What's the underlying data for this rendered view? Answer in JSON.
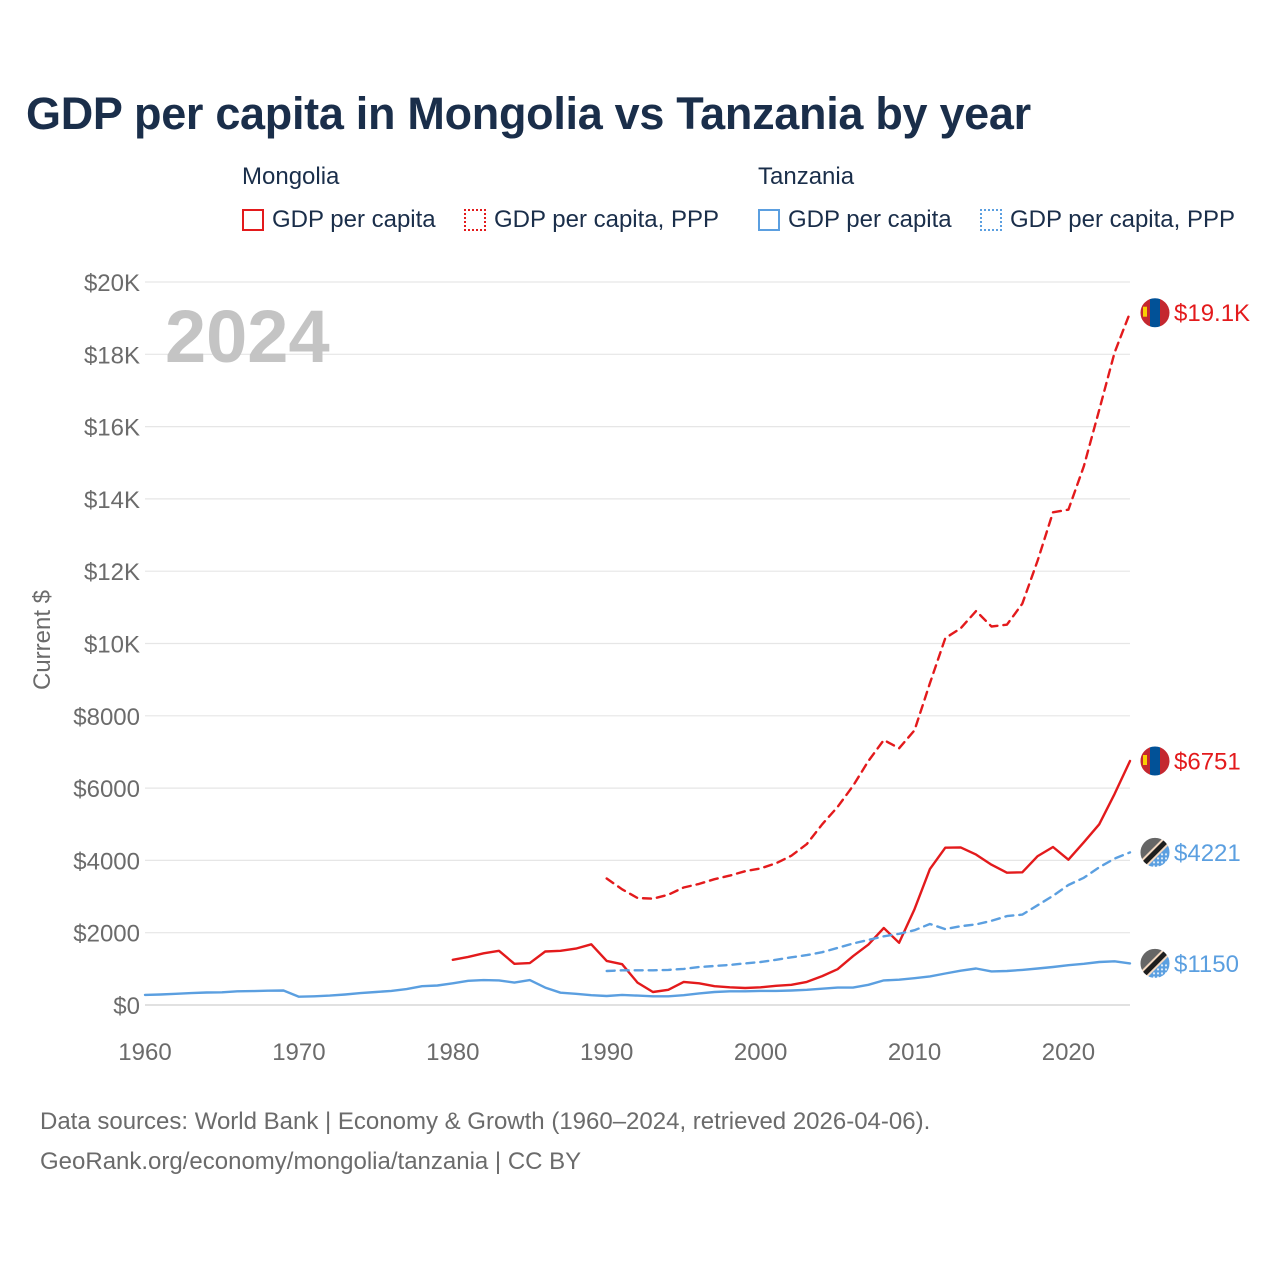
{
  "title": "GDP per capita in Mongolia vs Tanzania by year",
  "legend": {
    "groups": [
      {
        "name": "Mongolia",
        "items": [
          "GDP per capita",
          "GDP per capita, PPP"
        ]
      },
      {
        "name": "Tanzania",
        "items": [
          "GDP per capita",
          "GDP per capita, PPP"
        ]
      }
    ]
  },
  "colors": {
    "mongolia": "#e31a1c",
    "tanzania": "#5b9fe0",
    "grid": "#e6e6e6",
    "axis_text": "#6b6b6b",
    "year_watermark": "#c4c4c4"
  },
  "source": {
    "line1": "Data sources: World Bank | Economy & Growth (1960–2024, retrieved 2026-04-06).",
    "line2": "GeoRank.org/economy/mongolia/tanzania | CC BY"
  },
  "chart_data": {
    "type": "line",
    "year_label": "2024",
    "ylabel": "Current $",
    "xlim": [
      1960,
      2024
    ],
    "ylim": [
      0,
      20000
    ],
    "x_ticks": [
      1960,
      1970,
      1980,
      1990,
      2000,
      2010,
      2020
    ],
    "x_tick_labels": [
      "1960",
      "1970",
      "1980",
      "1990",
      "2000",
      "2010",
      "2020"
    ],
    "y_ticks": [
      0,
      2000,
      4000,
      6000,
      8000,
      10000,
      12000,
      14000,
      16000,
      18000,
      20000
    ],
    "y_tick_labels": [
      "$0",
      "$2000",
      "$4000",
      "$6000",
      "$8000",
      "$10K",
      "$12K",
      "$14K",
      "$16K",
      "$18K",
      "$20K"
    ],
    "series": [
      {
        "name": "Mongolia GDP per capita",
        "country": "Mongolia",
        "style": "solid",
        "color": "#e31a1c",
        "end_label": "$6751",
        "x": [
          1980,
          1981,
          1982,
          1983,
          1984,
          1985,
          1986,
          1987,
          1988,
          1989,
          1990,
          1991,
          1992,
          1993,
          1994,
          1995,
          1996,
          1997,
          1998,
          1999,
          2000,
          2001,
          2002,
          2003,
          2004,
          2005,
          2006,
          2007,
          2008,
          2009,
          2010,
          2011,
          2012,
          2013,
          2014,
          2015,
          2016,
          2017,
          2018,
          2019,
          2020,
          2021,
          2022,
          2023,
          2024
        ],
        "values": [
          1250,
          1330,
          1430,
          1500,
          1140,
          1160,
          1480,
          1500,
          1560,
          1680,
          1220,
          1130,
          620,
          360,
          420,
          640,
          600,
          520,
          490,
          470,
          490,
          530,
          560,
          640,
          800,
          990,
          1350,
          1670,
          2130,
          1720,
          2650,
          3760,
          4350,
          4360,
          4160,
          3880,
          3660,
          3670,
          4120,
          4370,
          4020,
          4500,
          5000,
          5840,
          6751
        ]
      },
      {
        "name": "Mongolia GDP per capita, PPP",
        "country": "Mongolia",
        "style": "dashed",
        "color": "#e31a1c",
        "end_label": "$19.1K",
        "x": [
          1990,
          1991,
          1992,
          1993,
          1994,
          1995,
          1996,
          1997,
          1998,
          1999,
          2000,
          2001,
          2002,
          2003,
          2004,
          2005,
          2006,
          2007,
          2008,
          2009,
          2010,
          2011,
          2012,
          2013,
          2014,
          2015,
          2016,
          2017,
          2018,
          2019,
          2020,
          2021,
          2022,
          2023,
          2024
        ],
        "values": [
          3500,
          3200,
          2960,
          2940,
          3050,
          3250,
          3350,
          3480,
          3580,
          3700,
          3780,
          3920,
          4130,
          4450,
          5000,
          5480,
          6060,
          6750,
          7330,
          7100,
          7600,
          8900,
          10150,
          10420,
          10900,
          10470,
          10520,
          11100,
          12300,
          13630,
          13700,
          14900,
          16460,
          18050,
          19150
        ]
      },
      {
        "name": "Tanzania GDP per capita",
        "country": "Tanzania",
        "style": "solid",
        "color": "#5b9fe0",
        "end_label": "$1150",
        "x": [
          1960,
          1961,
          1962,
          1963,
          1964,
          1965,
          1966,
          1967,
          1968,
          1969,
          1970,
          1971,
          1972,
          1973,
          1974,
          1975,
          1976,
          1977,
          1978,
          1979,
          1980,
          1981,
          1982,
          1983,
          1984,
          1985,
          1986,
          1987,
          1988,
          1989,
          1990,
          1991,
          1992,
          1993,
          1994,
          1995,
          1996,
          1997,
          1998,
          1999,
          2000,
          2001,
          2002,
          2003,
          2004,
          2005,
          2006,
          2007,
          2008,
          2009,
          2010,
          2011,
          2012,
          2013,
          2014,
          2015,
          2016,
          2017,
          2018,
          2019,
          2020,
          2021,
          2022,
          2023,
          2024
        ],
        "values": [
          280,
          290,
          310,
          330,
          345,
          350,
          380,
          385,
          395,
          400,
          230,
          240,
          260,
          290,
          330,
          360,
          390,
          440,
          520,
          540,
          600,
          670,
          690,
          680,
          620,
          690,
          480,
          340,
          310,
          270,
          250,
          280,
          260,
          240,
          240,
          270,
          320,
          360,
          380,
          380,
          390,
          390,
          400,
          420,
          450,
          480,
          480,
          560,
          680,
          700,
          740,
          790,
          870,
          950,
          1010,
          930,
          940,
          970,
          1010,
          1050,
          1100,
          1140,
          1190,
          1210,
          1150
        ]
      },
      {
        "name": "Tanzania GDP per capita, PPP",
        "country": "Tanzania",
        "style": "dashed",
        "color": "#5b9fe0",
        "end_label": "$4221",
        "x": [
          1990,
          1991,
          1992,
          1993,
          1994,
          1995,
          1996,
          1997,
          1998,
          1999,
          2000,
          2001,
          2002,
          2003,
          2004,
          2005,
          2006,
          2007,
          2008,
          2009,
          2010,
          2011,
          2012,
          2013,
          2014,
          2015,
          2016,
          2017,
          2018,
          2019,
          2020,
          2021,
          2022,
          2023,
          2024
        ],
        "values": [
          940,
          960,
          960,
          960,
          970,
          1000,
          1050,
          1080,
          1110,
          1150,
          1190,
          1250,
          1320,
          1380,
          1460,
          1580,
          1700,
          1800,
          1900,
          1970,
          2070,
          2240,
          2100,
          2180,
          2230,
          2330,
          2460,
          2500,
          2760,
          3020,
          3320,
          3520,
          3810,
          4050,
          4221
        ]
      }
    ]
  }
}
